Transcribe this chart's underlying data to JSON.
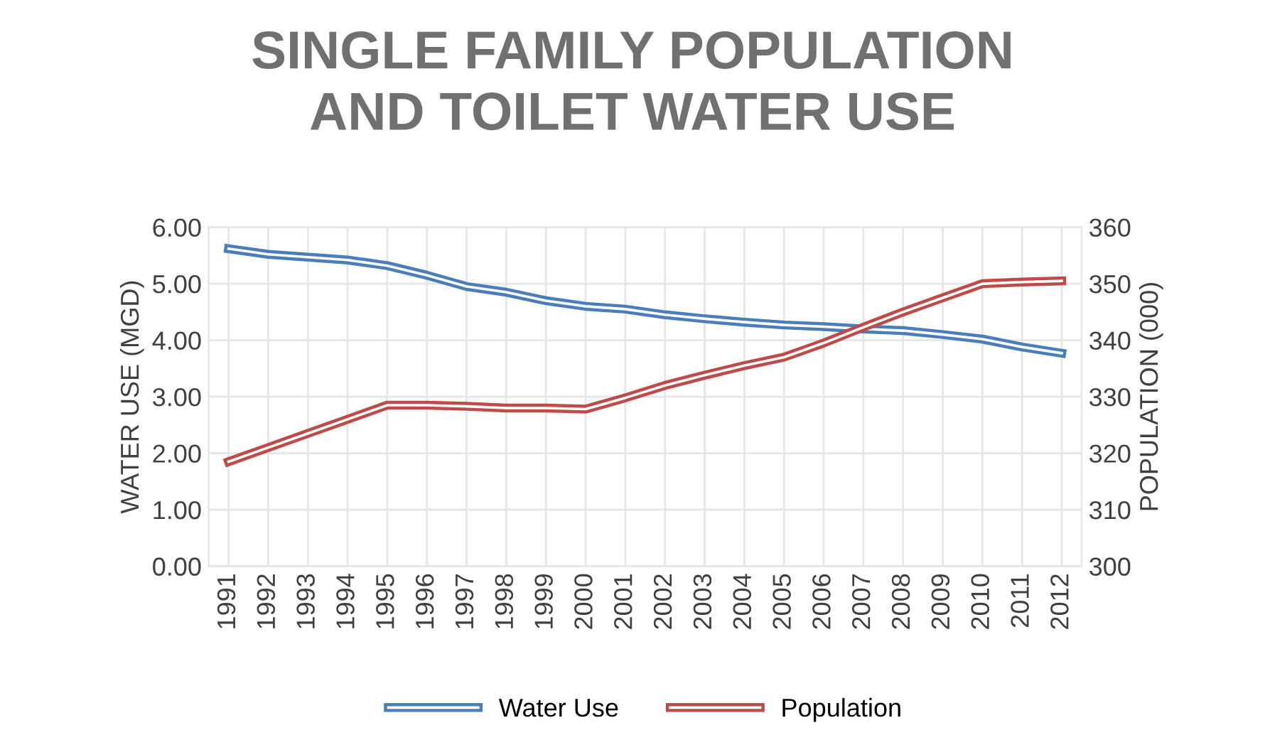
{
  "chart_data": {
    "type": "line",
    "title": "SINGLE FAMILY POPULATION\nAND TOILET WATER USE",
    "ylabel": "WATER USE (MGD)",
    "y2label": "POPULATION (000)",
    "categories": [
      "1991",
      "1992",
      "1993",
      "1994",
      "1995",
      "1996",
      "1997",
      "1998",
      "1999",
      "2000",
      "2001",
      "2002",
      "2003",
      "2004",
      "2005",
      "2006",
      "2007",
      "2008",
      "2009",
      "2010",
      "2011",
      "2012"
    ],
    "series": [
      {
        "name": "Water Use",
        "color": "#4a7ebb",
        "values": [
          5.62,
          5.52,
          5.47,
          5.42,
          5.32,
          5.15,
          4.95,
          4.85,
          4.7,
          4.6,
          4.55,
          4.45,
          4.38,
          4.32,
          4.27,
          4.24,
          4.2,
          4.17,
          4.1,
          4.02,
          3.88,
          3.77
        ]
      },
      {
        "name": "Population",
        "color": "#be4b48",
        "axis": "y2",
        "values": [
          318.5,
          321,
          323.5,
          326,
          328.5,
          328.5,
          328.3,
          328,
          328,
          327.8,
          329.8,
          332,
          333.8,
          335.5,
          337,
          339.5,
          342.3,
          345,
          347.5,
          350,
          350.3,
          350.5
        ]
      }
    ],
    "ylim": [
      0,
      6
    ],
    "yticks": [
      {
        "value": 0,
        "label": "0.00"
      },
      {
        "value": 1,
        "label": "1.00"
      },
      {
        "value": 2,
        "label": "2.00"
      },
      {
        "value": 3,
        "label": "3.00"
      },
      {
        "value": 4,
        "label": "4.00"
      },
      {
        "value": 5,
        "label": "5.00"
      },
      {
        "value": 6,
        "label": "6.00"
      }
    ],
    "y2lim": [
      300,
      360
    ],
    "y2ticks": [
      300,
      310,
      320,
      330,
      340,
      350,
      360
    ],
    "grid": true,
    "legend": "bottom",
    "line_style": "solid",
    "marker": "none"
  }
}
